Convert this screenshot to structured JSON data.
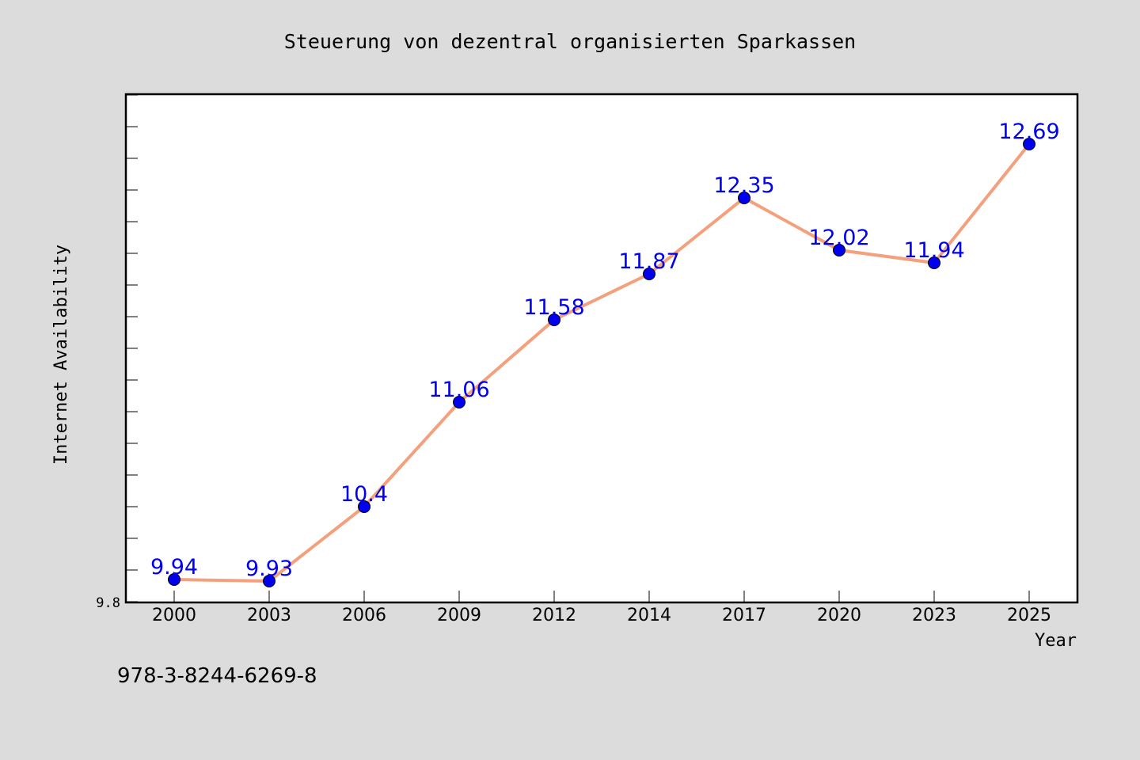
{
  "chart_data": {
    "type": "line",
    "title": "Steuerung von dezentral organisierten Sparkassen",
    "xlabel": "Year",
    "ylabel": "Internet Availability",
    "categories": [
      "2000",
      "2003",
      "2006",
      "2009",
      "2012",
      "2014",
      "2017",
      "2020",
      "2023",
      "2025"
    ],
    "series": [
      {
        "values": [
          9.94,
          9.93,
          10.4,
          11.06,
          11.58,
          11.87,
          12.35,
          12.02,
          11.94,
          12.69
        ],
        "data_labels": [
          "9.94",
          "9.93",
          "10.4",
          "11.06",
          "11.58",
          "11.87",
          "12.35",
          "12.02",
          "11.94",
          "12.69"
        ],
        "line_color": "#f4a07c",
        "marker_color": "#0000ee",
        "label_color": "#0000ee"
      }
    ],
    "ytick_labels": [
      "9.8"
    ],
    "ylim": [
      9.8,
      13.0
    ],
    "grid": false,
    "legend": "none",
    "annotation": "978-3-8244-6269-8"
  },
  "colors": {
    "figure_background": "#dcdcdc",
    "plot_background": "#ffffff",
    "axes": "#000000"
  }
}
